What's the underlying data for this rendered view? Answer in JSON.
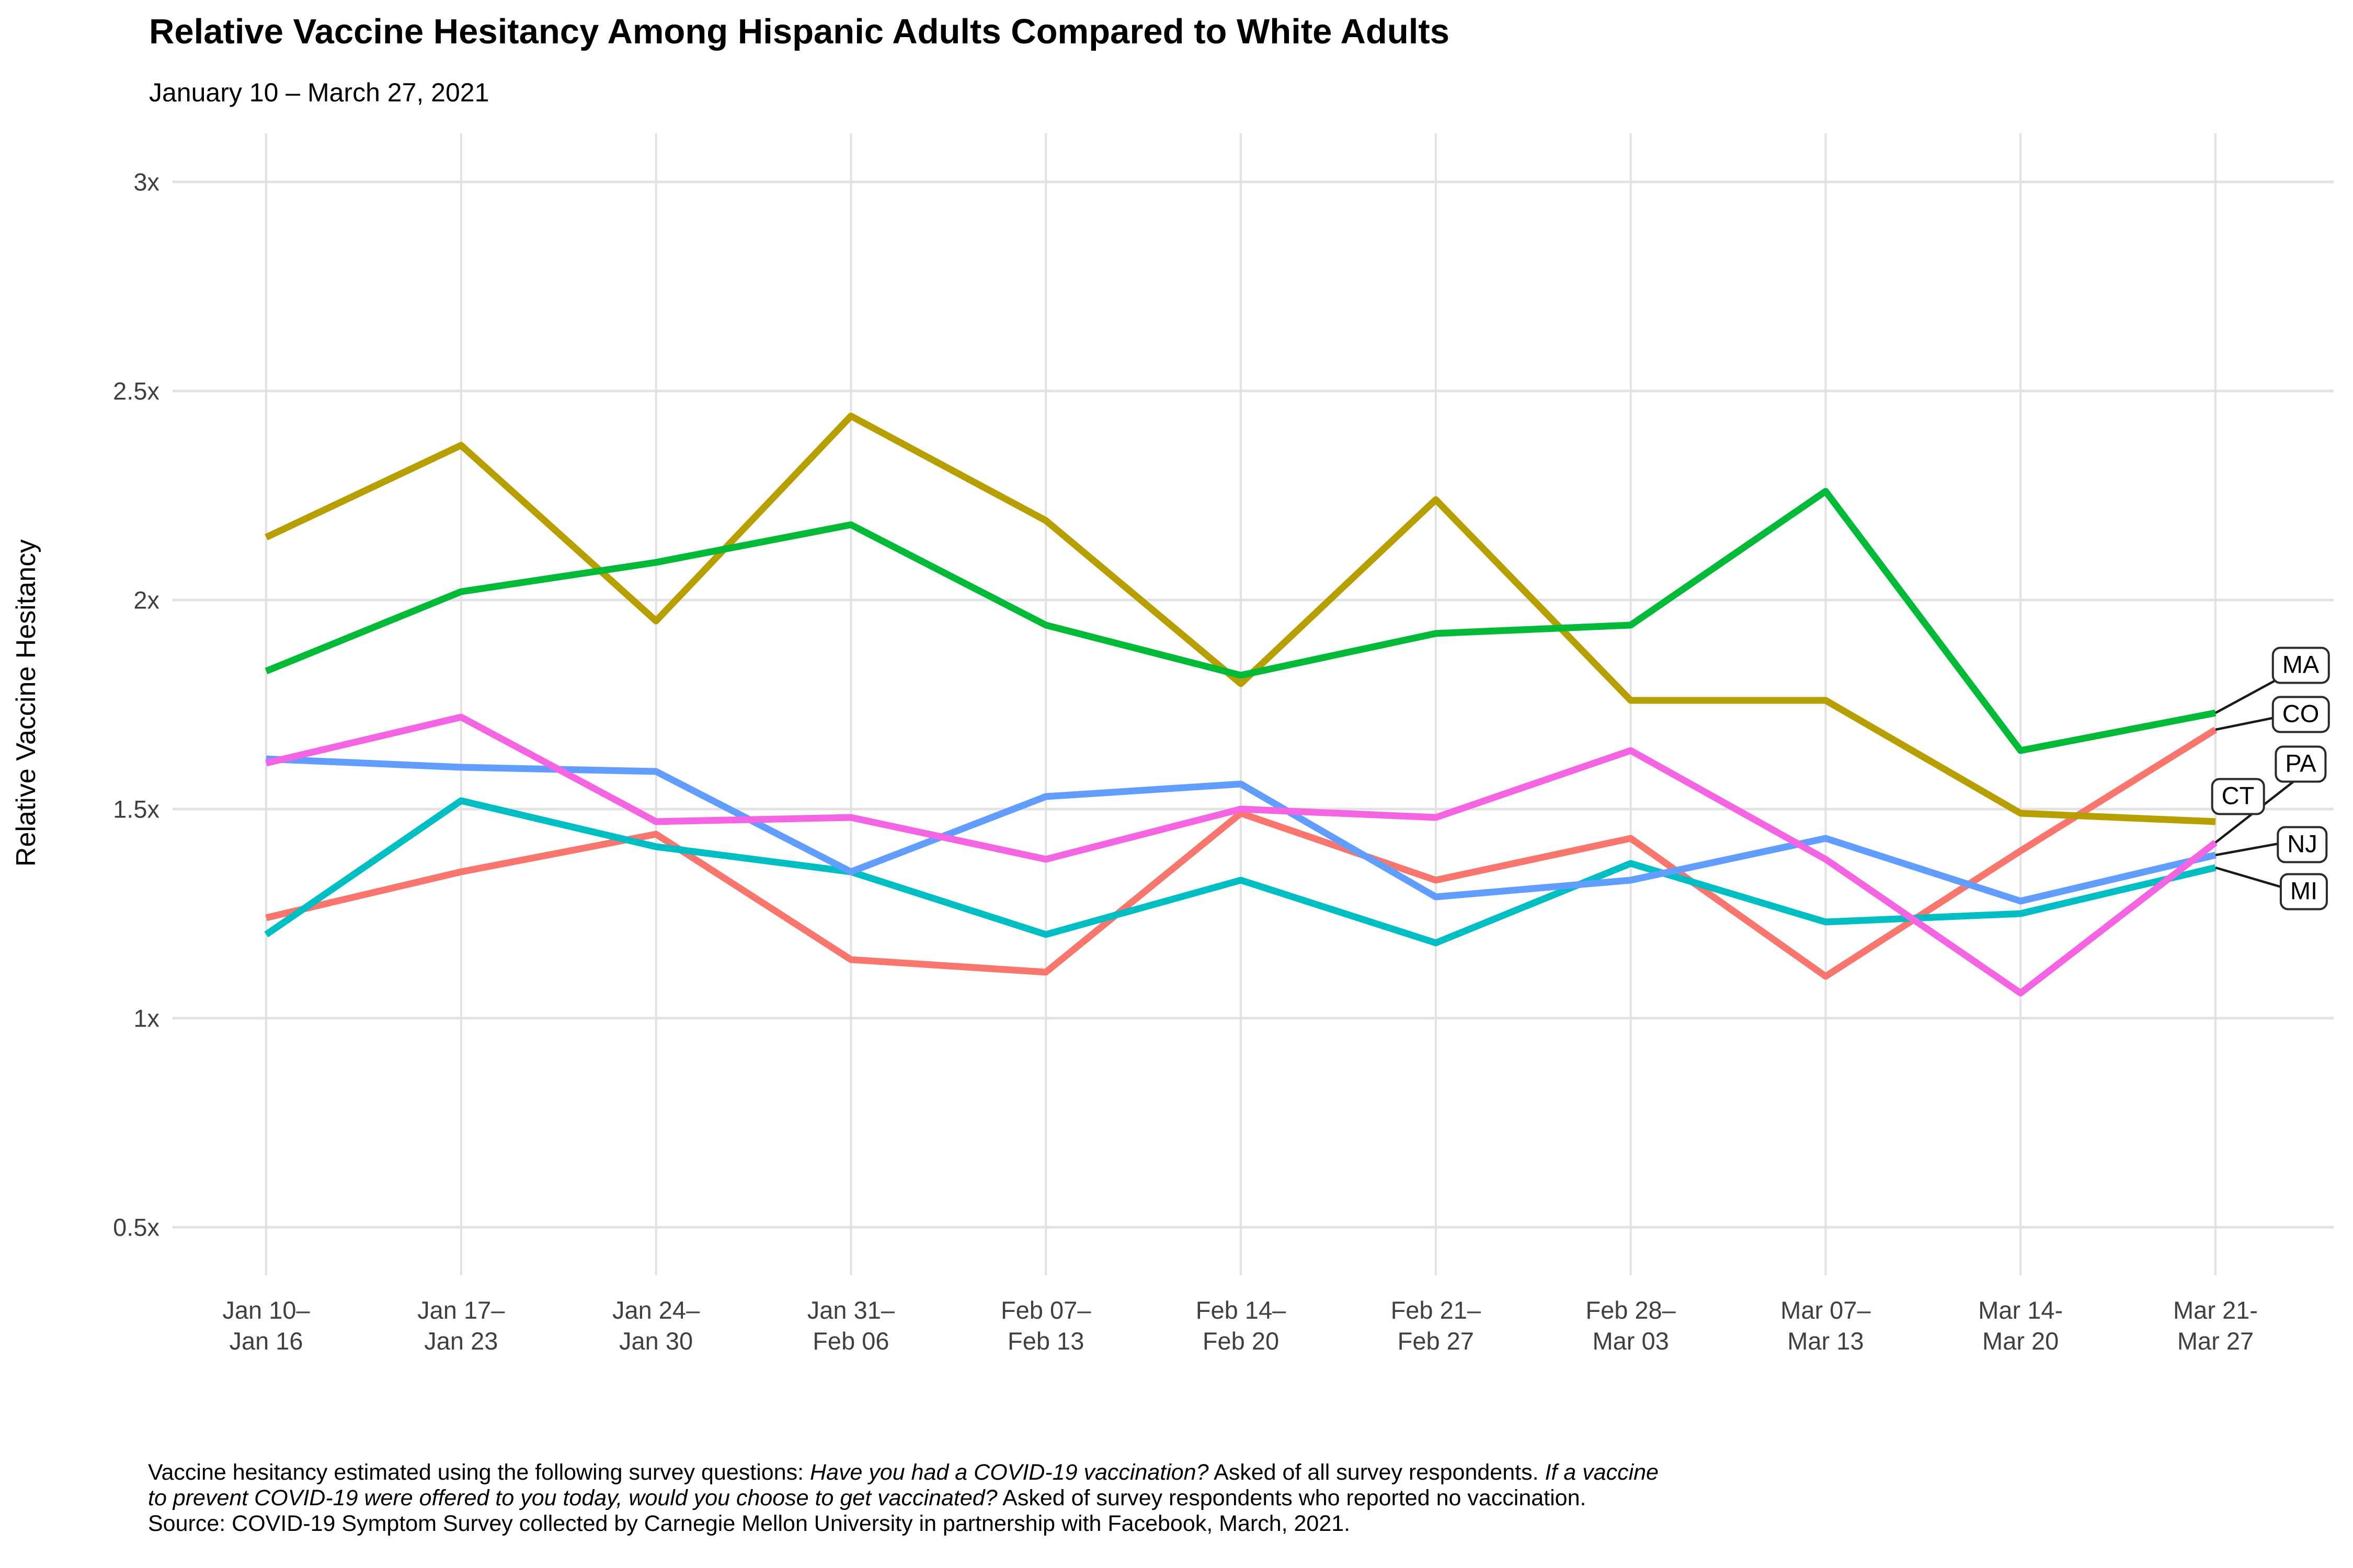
{
  "title": "Relative Vaccine Hesitancy Among Hispanic Adults Compared to White Adults",
  "subtitle": "January 10 – March 27, 2021",
  "y_axis": {
    "label": "Relative Vaccine Hesitancy",
    "ticks": [
      {
        "label": "3x",
        "value": 3.0
      },
      {
        "label": "2.5x",
        "value": 2.5
      },
      {
        "label": "2x",
        "value": 2.0
      },
      {
        "label": "1.5x",
        "value": 1.5
      },
      {
        "label": "1x",
        "value": 1.0
      },
      {
        "label": "0.5x",
        "value": 0.5
      }
    ]
  },
  "x_axis": {
    "categories": [
      {
        "line1": "Jan 10–",
        "line2": "Jan 16"
      },
      {
        "line1": "Jan 17–",
        "line2": "Jan 23"
      },
      {
        "line1": "Jan 24–",
        "line2": "Jan 30"
      },
      {
        "line1": "Jan 31–",
        "line2": "Feb 06"
      },
      {
        "line1": "Feb 07–",
        "line2": "Feb 13"
      },
      {
        "line1": "Feb 14–",
        "line2": "Feb 20"
      },
      {
        "line1": "Feb 21–",
        "line2": "Feb 27"
      },
      {
        "line1": "Feb 28–",
        "line2": "Mar 03"
      },
      {
        "line1": "Mar 07–",
        "line2": "Mar 13"
      },
      {
        "line1": "Mar 14-",
        "line2": "Mar 20"
      },
      {
        "line1": "Mar 21-",
        "line2": "Mar 27"
      }
    ]
  },
  "chart_data": {
    "type": "line",
    "title": "Relative Vaccine Hesitancy Among Hispanic Adults Compared to White Adults",
    "subtitle": "January 10 – March 27, 2021",
    "xlabel": "",
    "ylabel": "Relative Vaccine Hesitancy",
    "ylim": [
      0.5,
      3.0
    ],
    "grid": true,
    "legend_position": "right-end-labels",
    "x_categories": [
      "Jan 10–Jan 16",
      "Jan 17–Jan 23",
      "Jan 24–Jan 30",
      "Jan 31–Feb 06",
      "Feb 07–Feb 13",
      "Feb 14–Feb 20",
      "Feb 21–Feb 27",
      "Feb 28–Mar 03",
      "Mar 07–Mar 13",
      "Mar 14-Mar 20",
      "Mar 21-Mar 27"
    ],
    "series": [
      {
        "name": "CO",
        "color": "#F8766D",
        "values": [
          1.24,
          1.35,
          1.44,
          1.14,
          1.11,
          1.49,
          1.33,
          1.43,
          1.1,
          1.4,
          1.69
        ]
      },
      {
        "name": "CT",
        "color": "#B79F00",
        "values": [
          2.15,
          2.37,
          1.95,
          2.44,
          2.19,
          1.8,
          2.24,
          1.76,
          1.76,
          1.49,
          1.47
        ]
      },
      {
        "name": "MA",
        "color": "#00BA38",
        "values": [
          1.83,
          2.02,
          2.09,
          2.18,
          1.94,
          1.82,
          1.92,
          1.94,
          2.26,
          1.64,
          1.73
        ]
      },
      {
        "name": "MI",
        "color": "#00BFC4",
        "values": [
          1.2,
          1.52,
          1.41,
          1.35,
          1.2,
          1.33,
          1.18,
          1.37,
          1.23,
          1.25,
          1.36
        ]
      },
      {
        "name": "NJ",
        "color": "#619CFF",
        "values": [
          1.62,
          1.6,
          1.59,
          1.35,
          1.53,
          1.56,
          1.29,
          1.33,
          1.43,
          1.28,
          1.39
        ]
      },
      {
        "name": "PA",
        "color": "#F564E3",
        "values": [
          1.61,
          1.72,
          1.47,
          1.48,
          1.38,
          1.5,
          1.48,
          1.64,
          1.38,
          1.06,
          1.42
        ]
      }
    ],
    "end_labels": [
      "MA",
      "CO",
      "PA",
      "CT",
      "NJ",
      "MI"
    ]
  },
  "style": {
    "grid_color": "#E2E2E2",
    "leader_color": "#1a1a1a",
    "tick_text_color": "#404040"
  },
  "footer": {
    "lines": [
      [
        {
          "text": "Vaccine hesitancy estimated using the following survey questions: ",
          "italic": false
        },
        {
          "text": "Have you had a COVID-19 vaccination?",
          "italic": true
        },
        {
          "text": " Asked of all survey respondents. ",
          "italic": false
        },
        {
          "text": "If a vaccine",
          "italic": true
        }
      ],
      [
        {
          "text": "to prevent COVID-19 were offered to you today, would you choose to get vaccinated?",
          "italic": true
        },
        {
          "text": " Asked of survey respondents who reported no vaccination.",
          "italic": false
        }
      ],
      [
        {
          "text": "Source: COVID-19 Symptom Survey collected by Carnegie Mellon University in partnership with Facebook, March, 2021.",
          "italic": false
        }
      ]
    ]
  }
}
